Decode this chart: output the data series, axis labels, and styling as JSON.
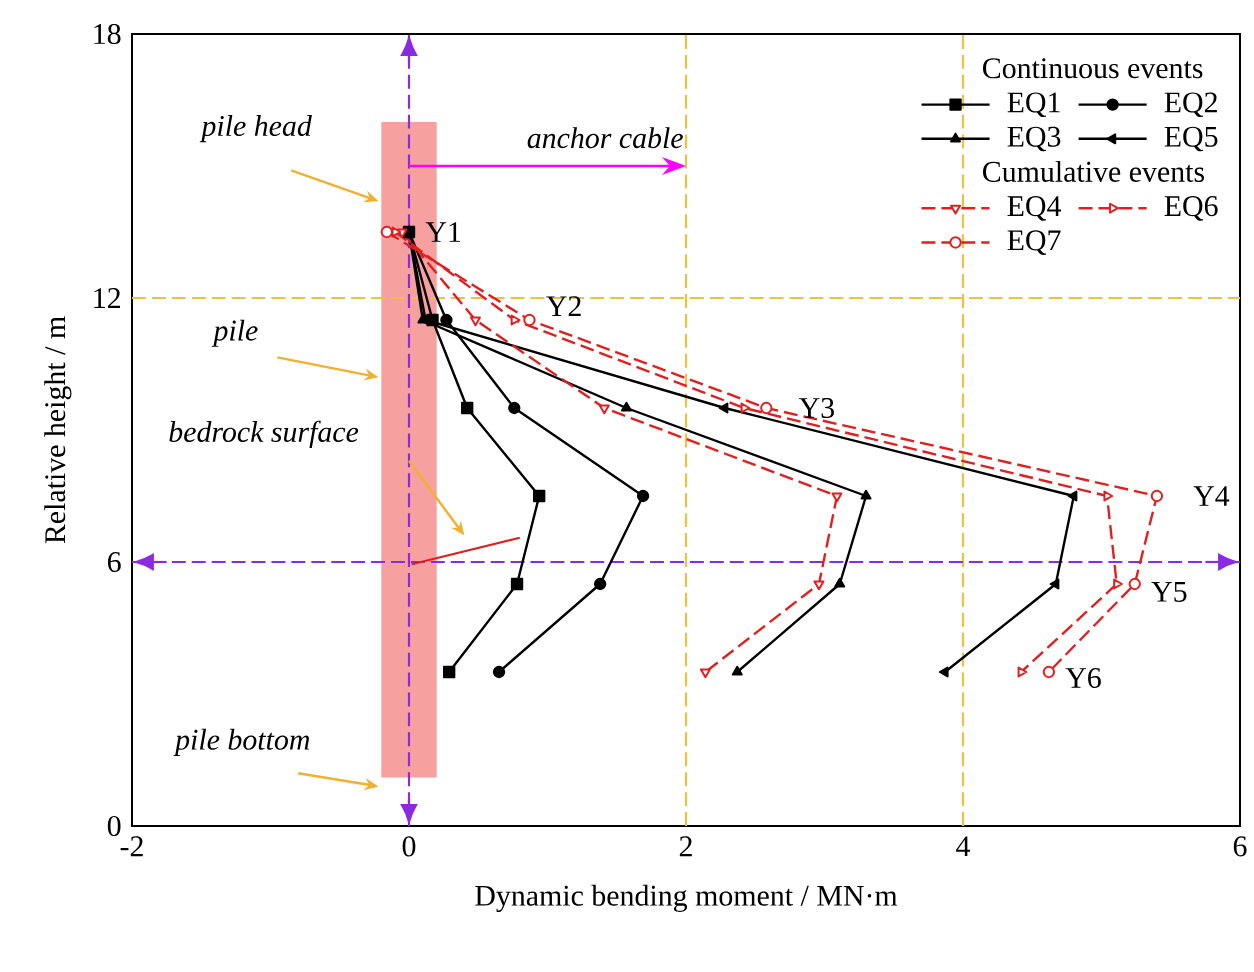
{
  "chart_data": {
    "type": "line",
    "xlabel": "Dynamic bending moment / MN·m",
    "ylabel": "Relative height / m",
    "xlim": [
      -2,
      6
    ],
    "ylim": [
      0,
      18
    ],
    "xticks": [
      -2,
      0,
      2,
      4,
      6
    ],
    "yticks": [
      0,
      6,
      12,
      18
    ],
    "grid": false,
    "legend": "top right",
    "series": [
      {
        "name": "EQ1",
        "color": "#000000",
        "marker": "square",
        "line_style": "solid",
        "x": [
          0.0,
          0.17,
          0.42,
          0.94,
          0.78,
          0.29
        ],
        "values": [
          13.5,
          11.5,
          9.5,
          7.5,
          5.5,
          3.5
        ]
      },
      {
        "name": "EQ2",
        "color": "#000000",
        "marker": "circle",
        "line_style": "solid",
        "x": [
          0.0,
          0.27,
          0.76,
          1.69,
          1.38,
          0.65
        ],
        "values": [
          13.5,
          11.5,
          9.5,
          7.5,
          5.5,
          3.5
        ]
      },
      {
        "name": "EQ3",
        "color": "#000000",
        "marker": "triangle",
        "line_style": "solid",
        "x": [
          0.0,
          0.1,
          1.57,
          3.3,
          3.11,
          2.37
        ],
        "values": [
          13.5,
          11.5,
          9.5,
          7.5,
          5.5,
          3.5
        ]
      },
      {
        "name": "EQ5",
        "color": "#000000",
        "marker": "triangle-left",
        "line_style": "solid",
        "x": [
          0.0,
          0.12,
          2.28,
          4.8,
          4.67,
          3.87
        ],
        "values": [
          13.5,
          11.5,
          9.5,
          7.5,
          5.5,
          3.5
        ]
      },
      {
        "name": "EQ4",
        "color": "#e02020",
        "marker": "triangle-down",
        "line_style": "dashed",
        "x": [
          -0.05,
          0.48,
          1.41,
          3.09,
          2.96,
          2.14
        ],
        "values": [
          13.5,
          11.5,
          9.5,
          7.5,
          5.5,
          3.5
        ]
      },
      {
        "name": "EQ6",
        "color": "#e02020",
        "marker": "triangle-right",
        "line_style": "dashed",
        "x": [
          -0.1,
          0.76,
          2.42,
          5.04,
          5.11,
          4.42
        ],
        "values": [
          13.5,
          11.5,
          9.5,
          7.5,
          5.5,
          3.5
        ]
      },
      {
        "name": "EQ7",
        "color": "#e02020",
        "marker": "circle",
        "line_style": "dashed",
        "x": [
          -0.16,
          0.87,
          2.58,
          5.4,
          5.24,
          4.62
        ],
        "values": [
          13.5,
          11.5,
          9.5,
          7.5,
          5.5,
          3.5
        ]
      }
    ],
    "ref_lines": [
      {
        "axis": "y",
        "value": 12,
        "color": "#f0c040",
        "line_style": "dashed"
      },
      {
        "axis": "x",
        "value": 2,
        "color": "#f0c040",
        "line_style": "dashed"
      },
      {
        "axis": "x",
        "value": 4,
        "color": "#f0c040",
        "line_style": "dashed"
      },
      {
        "axis": "y",
        "value": 6,
        "color": "#8a2be2",
        "line_style": "dashed"
      },
      {
        "axis": "x",
        "value": 0,
        "color": "#8a2be2",
        "line_style": "dashed"
      }
    ],
    "annotations": [
      "Continuous events",
      "Cumulative events",
      "pile head",
      {
        "text": "anchor cable",
        "x": 2,
        "y": 15
      },
      "pile",
      "bedrock surface",
      "pile bottom",
      {
        "text": "Y1",
        "x": 0.0,
        "y": 13.5
      },
      {
        "text": "Y2",
        "x": 0.87,
        "y": 11.5
      },
      {
        "text": "Y3",
        "x": 2.58,
        "y": 9.5
      },
      {
        "text": "Y4",
        "x": 5.4,
        "y": 7.5
      },
      {
        "text": "Y5",
        "x": 5.24,
        "y": 5.5
      },
      {
        "text": "Y6",
        "x": 4.62,
        "y": 3.5
      }
    ]
  }
}
